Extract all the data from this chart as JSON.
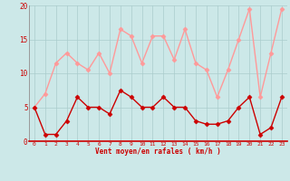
{
  "x": [
    0,
    1,
    2,
    3,
    4,
    5,
    6,
    7,
    8,
    9,
    10,
    11,
    12,
    13,
    14,
    15,
    16,
    17,
    18,
    19,
    20,
    21,
    22,
    23
  ],
  "avg_wind": [
    5,
    1,
    1,
    3,
    6.5,
    5,
    5,
    4,
    7.5,
    6.5,
    5,
    5,
    6.5,
    5,
    5,
    3,
    2.5,
    2.5,
    3,
    5,
    6.5,
    1,
    2,
    6.5
  ],
  "gust_wind": [
    5,
    7,
    11.5,
    13,
    11.5,
    10.5,
    13,
    10,
    16.5,
    15.5,
    11.5,
    15.5,
    15.5,
    12,
    16.5,
    11.5,
    10.5,
    6.5,
    10.5,
    15,
    19.5,
    6.5,
    13,
    19.5
  ],
  "avg_color": "#cc0000",
  "gust_color": "#ff9999",
  "background_color": "#cce8e8",
  "grid_color": "#aacccc",
  "xlabel": "Vent moyen/en rafales ( km/h )",
  "xlabel_color": "#cc0000",
  "tick_color": "#cc0000",
  "ylim": [
    0,
    20
  ],
  "yticks": [
    0,
    5,
    10,
    15,
    20
  ],
  "marker": "D",
  "marker_size": 2.5,
  "line_width": 1.0
}
